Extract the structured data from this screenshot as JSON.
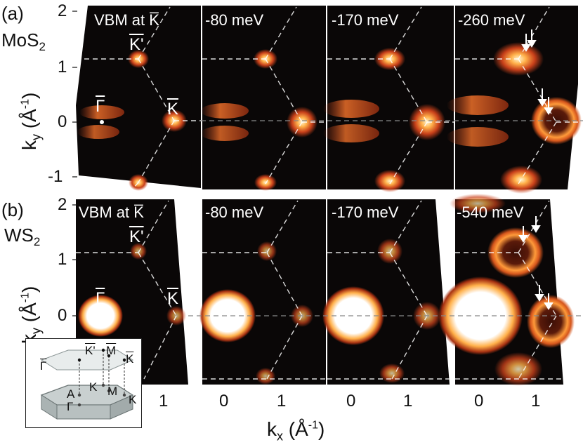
{
  "panels": {
    "a": {
      "tag": "(a)",
      "material": "MoS",
      "material_sub": "2"
    },
    "b": {
      "tag": "(b)",
      "material": "WS",
      "material_sub": "2"
    }
  },
  "energies": {
    "row_a": [
      "VBM at K̅",
      "-80 meV",
      "-170 meV",
      "-260 meV"
    ],
    "row_b": [
      "VBM at K̅",
      "-80 meV",
      "-170 meV",
      "-540 meV"
    ]
  },
  "axes": {
    "ylabel": "ky (Å⁻¹)",
    "ylabel_main": "k",
    "ylabel_sub": "y",
    "ylabel_unit": "(Å",
    "ylabel_sup": "-1",
    "ylabel_close": ")",
    "xlabel_main": "k",
    "xlabel_sub": "x",
    "xlabel_unit": "(Å",
    "xlabel_sup": "-1",
    "xlabel_close": ")",
    "y_ticks": [
      "2",
      "1",
      "0",
      "-1"
    ],
    "x_ticks": [
      "1",
      "0",
      "1",
      "0",
      "1",
      "0",
      "1"
    ]
  },
  "k_points": {
    "kprime": "K'",
    "k": "K",
    "gamma": "Γ"
  },
  "inset": {
    "top_labels": [
      "Γ",
      "K'",
      "M",
      "K"
    ],
    "bottom_labels": [
      "A",
      "Γ",
      "K",
      "M",
      "K"
    ]
  },
  "colors": {
    "map_bg": "#0a0707",
    "hot": "#ff7a1e",
    "hot_core": "#fff2c0"
  }
}
